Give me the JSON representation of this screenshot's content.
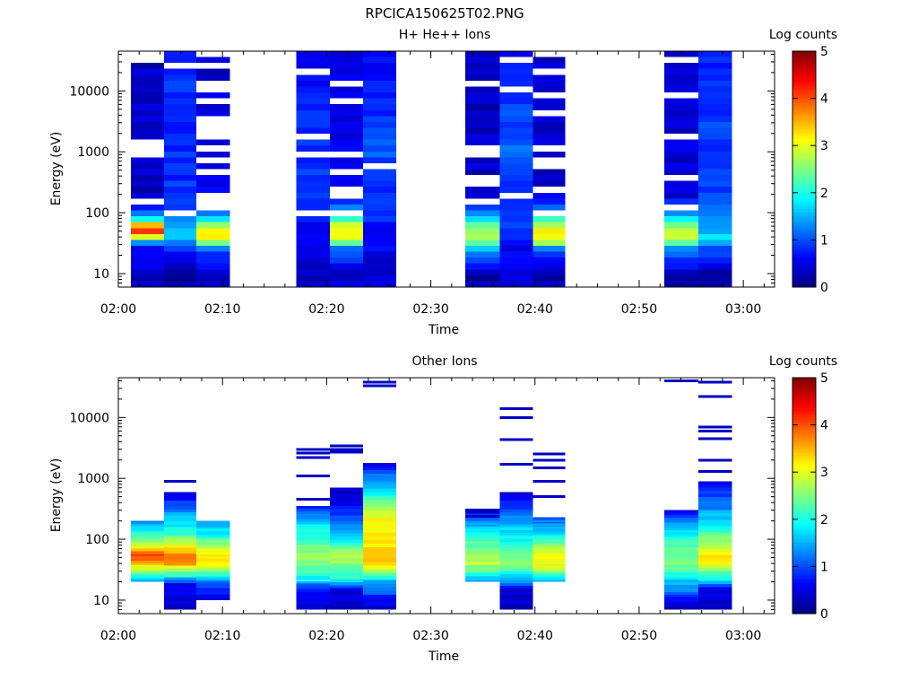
{
  "figure_title": "RPCICA150625T02.PNG",
  "chart_data": [
    {
      "type": "heatmap",
      "title": "H+ He++ Ions",
      "xlabel": "Time",
      "ylabel": "Energy (eV)",
      "y_scale": "log",
      "ylim": [
        6,
        45000
      ],
      "xlim": [
        "02:00",
        "03:03"
      ],
      "x_ticks": [
        "02:00",
        "02:10",
        "02:20",
        "02:30",
        "02:40",
        "02:50",
        "03:00"
      ],
      "y_ticks": [
        "10",
        "100",
        "1000",
        "10000"
      ],
      "colorbar": {
        "label": "Log counts",
        "min": 0,
        "max": 5,
        "ticks": [
          "0",
          "1",
          "2",
          "3",
          "4",
          "5"
        ]
      },
      "time_bins_min": [
        {
          "start": 1.2,
          "end": 4.4,
          "profile": [
            [
              10,
              0.3
            ],
            [
              30,
              0.7
            ],
            [
              45,
              3.8
            ],
            [
              55,
              4.2
            ],
            [
              80,
              1.8
            ],
            [
              150,
              0.3
            ],
            [
              10000,
              0.4
            ],
            [
              40000,
              0.3
            ]
          ],
          "gap": 0.32,
          "gapmin": 80
        },
        {
          "start": 4.4,
          "end": 7.5,
          "profile": [
            [
              10,
              0.2
            ],
            [
              25,
              0.8
            ],
            [
              40,
              1.6
            ],
            [
              60,
              1.4
            ],
            [
              120,
              0.9
            ],
            [
              1000,
              0.8
            ],
            [
              10000,
              0.9
            ],
            [
              40000,
              0.7
            ]
          ],
          "gap": 0.05,
          "gapmin": 80
        },
        {
          "start": 7.5,
          "end": 10.7,
          "profile": [
            [
              10,
              0.3
            ],
            [
              25,
              1.1
            ],
            [
              35,
              3.1
            ],
            [
              55,
              3.2
            ],
            [
              80,
              1.6
            ],
            [
              150,
              0.5
            ],
            [
              10000,
              0.4
            ],
            [
              40000,
              0.3
            ]
          ],
          "gap": 0.35,
          "gapmin": 80
        },
        {
          "start": 17.1,
          "end": 20.3,
          "profile": [
            [
              10,
              0.3
            ],
            [
              50,
              0.6
            ],
            [
              200,
              0.9
            ],
            [
              1000,
              0.8
            ],
            [
              10000,
              0.7
            ],
            [
              40000,
              0.5
            ]
          ],
          "gap": 0.12,
          "gapmin": 80
        },
        {
          "start": 20.3,
          "end": 23.5,
          "profile": [
            [
              10,
              0.4
            ],
            [
              25,
              1.1
            ],
            [
              35,
              2.9
            ],
            [
              60,
              3.0
            ],
            [
              90,
              1.5
            ],
            [
              200,
              0.6
            ],
            [
              10000,
              0.5
            ],
            [
              40000,
              0.4
            ]
          ],
          "gap": 0.22,
          "gapmin": 80
        },
        {
          "start": 23.5,
          "end": 26.7,
          "profile": [
            [
              10,
              0.4
            ],
            [
              50,
              0.7
            ],
            [
              300,
              0.9
            ],
            [
              1000,
              1.0
            ],
            [
              10000,
              0.8
            ],
            [
              40000,
              0.6
            ]
          ],
          "gap": 0.05,
          "gapmin": 80
        },
        {
          "start": 33.3,
          "end": 36.6,
          "profile": [
            [
              10,
              0.2
            ],
            [
              25,
              1.7
            ],
            [
              35,
              2.7
            ],
            [
              60,
              2.4
            ],
            [
              90,
              1.5
            ],
            [
              200,
              0.4
            ],
            [
              10000,
              0.3
            ],
            [
              40000,
              0.3
            ]
          ],
          "gap": 0.3,
          "gapmin": 80
        },
        {
          "start": 36.6,
          "end": 39.8,
          "profile": [
            [
              10,
              0.4
            ],
            [
              30,
              0.6
            ],
            [
              60,
              1.0
            ],
            [
              300,
              0.9
            ],
            [
              1000,
              1.1
            ],
            [
              10000,
              0.9
            ],
            [
              40000,
              0.7
            ]
          ],
          "gap": 0.05,
          "gapmin": 80
        },
        {
          "start": 39.8,
          "end": 42.9,
          "profile": [
            [
              10,
              0.3
            ],
            [
              25,
              1.2
            ],
            [
              35,
              3.0
            ],
            [
              55,
              3.1
            ],
            [
              90,
              1.6
            ],
            [
              200,
              0.4
            ],
            [
              10000,
              0.4
            ],
            [
              40000,
              0.3
            ]
          ],
          "gap": 0.35,
          "gapmin": 80
        },
        {
          "start": 52.4,
          "end": 55.7,
          "profile": [
            [
              10,
              0.3
            ],
            [
              25,
              1.3
            ],
            [
              35,
              2.8
            ],
            [
              55,
              2.8
            ],
            [
              90,
              1.5
            ],
            [
              200,
              0.4
            ],
            [
              10000,
              0.4
            ],
            [
              40000,
              0.3
            ]
          ],
          "gap": 0.3,
          "gapmin": 80
        },
        {
          "start": 55.7,
          "end": 58.9,
          "profile": [
            [
              10,
              0.2
            ],
            [
              25,
              1.0
            ],
            [
              40,
              1.7
            ],
            [
              80,
              1.3
            ],
            [
              300,
              0.9
            ],
            [
              10000,
              0.9
            ],
            [
              40000,
              0.8
            ]
          ],
          "gap": 0.05,
          "gapmin": 80
        }
      ]
    },
    {
      "type": "heatmap",
      "title": "Other Ions",
      "xlabel": "Time",
      "ylabel": "Energy (eV)",
      "y_scale": "log",
      "ylim": [
        6,
        45000
      ],
      "xlim": [
        "02:00",
        "03:03"
      ],
      "x_ticks": [
        "02:00",
        "02:10",
        "02:20",
        "02:30",
        "02:40",
        "02:50",
        "03:00"
      ],
      "y_ticks": [
        "10",
        "100",
        "1000",
        "10000"
      ],
      "colorbar": {
        "label": "Log counts",
        "min": 0,
        "max": 5,
        "ticks": [
          "0",
          "1",
          "2",
          "3",
          "4",
          "5"
        ]
      },
      "time_bins_min": [
        {
          "start": 1.2,
          "end": 4.4,
          "emin": 20,
          "emax": 200,
          "profile": [
            [
              20,
              1.2
            ],
            [
              30,
              2.6
            ],
            [
              45,
              3.9
            ],
            [
              55,
              4.1
            ],
            [
              80,
              2.9
            ],
            [
              130,
              2.0
            ],
            [
              200,
              1.3
            ]
          ],
          "lines": []
        },
        {
          "start": 4.4,
          "end": 7.5,
          "emin": 7,
          "emax": 600,
          "profile": [
            [
              7,
              0.3
            ],
            [
              18,
              0.6
            ],
            [
              25,
              2.0
            ],
            [
              45,
              4.0
            ],
            [
              60,
              3.6
            ],
            [
              120,
              2.2
            ],
            [
              300,
              1.3
            ],
            [
              600,
              0.3
            ]
          ],
          "lines": [
            900
          ]
        },
        {
          "start": 7.5,
          "end": 10.7,
          "emin": 10,
          "emax": 200,
          "profile": [
            [
              10,
              0.3
            ],
            [
              20,
              1.3
            ],
            [
              35,
              3.1
            ],
            [
              60,
              3.2
            ],
            [
              120,
              1.9
            ],
            [
              200,
              1.4
            ]
          ],
          "lines": []
        },
        {
          "start": 17.1,
          "end": 20.3,
          "emin": 7,
          "emax": 350,
          "profile": [
            [
              7,
              0.3
            ],
            [
              15,
              0.8
            ],
            [
              25,
              2.0
            ],
            [
              50,
              2.7
            ],
            [
              100,
              2.2
            ],
            [
              200,
              1.6
            ],
            [
              350,
              0.6
            ]
          ],
          "lines": [
            450,
            1100,
            2200,
            2600,
            3000
          ]
        },
        {
          "start": 20.3,
          "end": 23.5,
          "emin": 7,
          "emax": 700,
          "profile": [
            [
              7,
              0.3
            ],
            [
              15,
              0.5
            ],
            [
              22,
              2.0
            ],
            [
              50,
              2.8
            ],
            [
              100,
              1.9
            ],
            [
              250,
              0.9
            ],
            [
              700,
              0.3
            ]
          ],
          "lines": [
            2700,
            3000,
            3400
          ]
        },
        {
          "start": 23.5,
          "end": 26.7,
          "emin": 7,
          "emax": 1800,
          "profile": [
            [
              7,
              0.3
            ],
            [
              20,
              1.5
            ],
            [
              40,
              3.3
            ],
            [
              100,
              3.3
            ],
            [
              250,
              3.0
            ],
            [
              500,
              2.0
            ],
            [
              1000,
              1.2
            ],
            [
              1800,
              0.5
            ]
          ],
          "lines": [
            33000,
            38000
          ]
        },
        {
          "start": 33.3,
          "end": 36.6,
          "emin": 20,
          "emax": 320,
          "profile": [
            [
              20,
              1.4
            ],
            [
              40,
              2.8
            ],
            [
              80,
              2.4
            ],
            [
              160,
              1.6
            ],
            [
              320,
              0.5
            ]
          ],
          "lines": [
            240,
            280
          ]
        },
        {
          "start": 36.6,
          "end": 39.8,
          "emin": 7,
          "emax": 600,
          "profile": [
            [
              7,
              0.3
            ],
            [
              15,
              0.5
            ],
            [
              22,
              1.5
            ],
            [
              40,
              2.6
            ],
            [
              90,
              2.0
            ],
            [
              200,
              1.4
            ],
            [
              600,
              0.3
            ]
          ],
          "lines": [
            1700,
            4300,
            10000,
            14000
          ]
        },
        {
          "start": 39.8,
          "end": 42.9,
          "emin": 20,
          "emax": 230,
          "profile": [
            [
              20,
              1.4
            ],
            [
              35,
              3.1
            ],
            [
              60,
              3.0
            ],
            [
              120,
              1.8
            ],
            [
              230,
              1.0
            ]
          ],
          "lines": [
            500,
            900,
            1500,
            2000,
            2500
          ]
        },
        {
          "start": 52.4,
          "end": 55.7,
          "emin": 7,
          "emax": 300,
          "profile": [
            [
              7,
              0.3
            ],
            [
              20,
              1.6
            ],
            [
              40,
              2.6
            ],
            [
              80,
              2.2
            ],
            [
              150,
              1.6
            ],
            [
              300,
              0.6
            ]
          ],
          "lines": [
            40000
          ]
        },
        {
          "start": 55.7,
          "end": 58.9,
          "emin": 7,
          "emax": 900,
          "profile": [
            [
              7,
              0.3
            ],
            [
              15,
              0.5
            ],
            [
              22,
              1.8
            ],
            [
              40,
              3.2
            ],
            [
              60,
              3.1
            ],
            [
              150,
              2.0
            ],
            [
              400,
              1.1
            ],
            [
              900,
              0.5
            ]
          ],
          "lines": [
            1300,
            2000,
            4500,
            6000,
            7000,
            22000,
            38000
          ]
        }
      ]
    }
  ]
}
